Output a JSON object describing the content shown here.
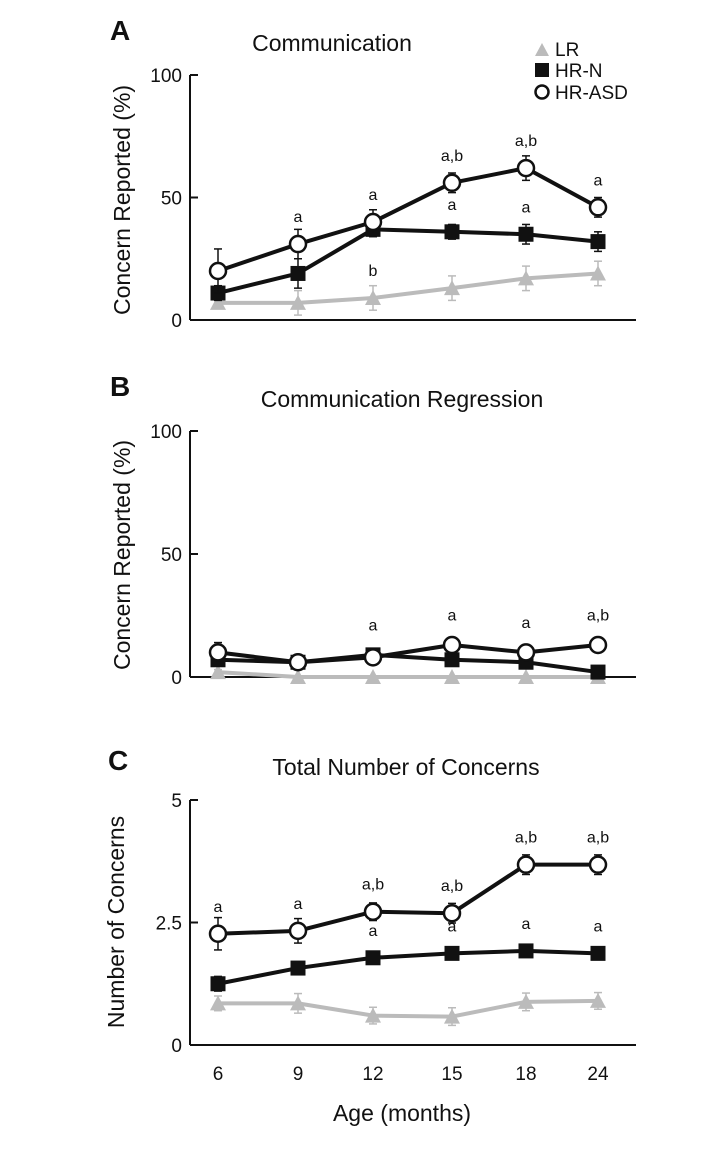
{
  "legend": {
    "placement": "top-right",
    "entries": [
      {
        "name": "LR",
        "marker": "triangle",
        "color": "#bbbbbb"
      },
      {
        "name": "HR-N",
        "marker": "square",
        "color": "#111111"
      },
      {
        "name": "HR-ASD",
        "marker": "open-circle",
        "color": "#111111"
      }
    ]
  },
  "xlabel": "Age (months)",
  "chart_data": [
    {
      "type": "line",
      "panel_label": "A",
      "title": "Communication",
      "ylabel": "Concern Reported (%)",
      "xlabel": "",
      "categories": [
        "6",
        "9",
        "12",
        "15",
        "18",
        "24"
      ],
      "ylim": [
        0,
        100
      ],
      "yticks": [
        "0",
        "50",
        "100"
      ],
      "grid": false,
      "series": [
        {
          "name": "LR",
          "values": [
            7,
            7,
            9,
            13,
            17,
            19
          ],
          "errors": [
            2,
            5,
            5,
            5,
            5,
            5
          ]
        },
        {
          "name": "HR-N",
          "values": [
            11,
            19,
            37,
            36,
            35,
            32
          ],
          "errors": [
            3,
            6,
            3,
            3,
            4,
            4
          ]
        },
        {
          "name": "HR-ASD",
          "values": [
            20,
            31,
            40,
            56,
            62,
            46
          ],
          "errors": [
            9,
            6,
            5,
            4,
            5,
            4
          ]
        }
      ],
      "annotations": [
        {
          "x": "9",
          "text": "a",
          "above": 31
        },
        {
          "x": "12",
          "text": "a",
          "above": 40
        },
        {
          "x": "15",
          "text": "a,b",
          "above": 56
        },
        {
          "x": "18",
          "text": "a,b",
          "above": 62
        },
        {
          "x": "24",
          "text": "a",
          "above": 46
        },
        {
          "x": "15",
          "text": "a",
          "above": 36
        },
        {
          "x": "18",
          "text": "a",
          "above": 35
        },
        {
          "x": "12",
          "text": "b",
          "above": 9
        }
      ]
    },
    {
      "type": "line",
      "panel_label": "B",
      "title": "Communication Regression",
      "ylabel": "Concern Reported (%)",
      "xlabel": "",
      "categories": [
        "6",
        "9",
        "12",
        "15",
        "18",
        "24"
      ],
      "ylim": [
        0,
        100
      ],
      "yticks": [
        "0",
        "50",
        "100"
      ],
      "grid": false,
      "series": [
        {
          "name": "LR",
          "values": [
            2,
            0,
            0,
            0,
            0,
            0
          ],
          "errors": [
            1,
            0,
            0,
            0,
            0,
            0
          ]
        },
        {
          "name": "HR-N",
          "values": [
            7,
            6,
            9,
            7,
            6,
            2
          ],
          "errors": [
            2,
            2,
            2,
            2,
            2,
            1
          ]
        },
        {
          "name": "HR-ASD",
          "values": [
            10,
            6,
            8,
            13,
            10,
            13
          ],
          "errors": [
            4,
            2,
            2,
            2,
            2,
            2
          ]
        }
      ],
      "annotations": [
        {
          "x": "12",
          "text": "a",
          "above": 10
        },
        {
          "x": "15",
          "text": "a",
          "above": 14
        },
        {
          "x": "18",
          "text": "a",
          "above": 11
        },
        {
          "x": "24",
          "text": "a,b",
          "above": 14
        }
      ]
    },
    {
      "type": "line",
      "panel_label": "C",
      "title": "Total Number of Concerns",
      "ylabel": "Number of Concerns",
      "xlabel": "Age (months)",
      "categories": [
        "6",
        "9",
        "12",
        "15",
        "18",
        "24"
      ],
      "ylim": [
        0,
        5
      ],
      "yticks": [
        "0",
        "2.5",
        "5"
      ],
      "grid": false,
      "series": [
        {
          "name": "LR",
          "values": [
            0.85,
            0.85,
            0.6,
            0.58,
            0.88,
            0.9
          ],
          "errors": [
            0.15,
            0.2,
            0.17,
            0.18,
            0.18,
            0.17
          ]
        },
        {
          "name": "HR-N",
          "values": [
            1.25,
            1.57,
            1.78,
            1.87,
            1.92,
            1.87
          ],
          "errors": [
            0.15,
            0.13,
            0.12,
            0.1,
            0.1,
            0.1
          ]
        },
        {
          "name": "HR-ASD",
          "values": [
            2.27,
            2.33,
            2.72,
            2.69,
            3.68,
            3.68
          ],
          "errors": [
            0.33,
            0.25,
            0.18,
            0.2,
            0.2,
            0.2
          ]
        }
      ],
      "annotations": [
        {
          "x": "6",
          "text": "a",
          "above": 2.27
        },
        {
          "x": "9",
          "text": "a",
          "above": 2.33
        },
        {
          "x": "12",
          "text": "a,b",
          "above": 2.72
        },
        {
          "x": "15",
          "text": "a,b",
          "above": 2.69
        },
        {
          "x": "18",
          "text": "a,b",
          "above": 3.68
        },
        {
          "x": "24",
          "text": "a,b",
          "above": 3.68
        },
        {
          "x": "12",
          "text": "a",
          "above": 1.78
        },
        {
          "x": "15",
          "text": "a",
          "above": 1.87
        },
        {
          "x": "18",
          "text": "a",
          "above": 1.92
        },
        {
          "x": "24",
          "text": "a",
          "above": 1.87
        }
      ]
    }
  ]
}
